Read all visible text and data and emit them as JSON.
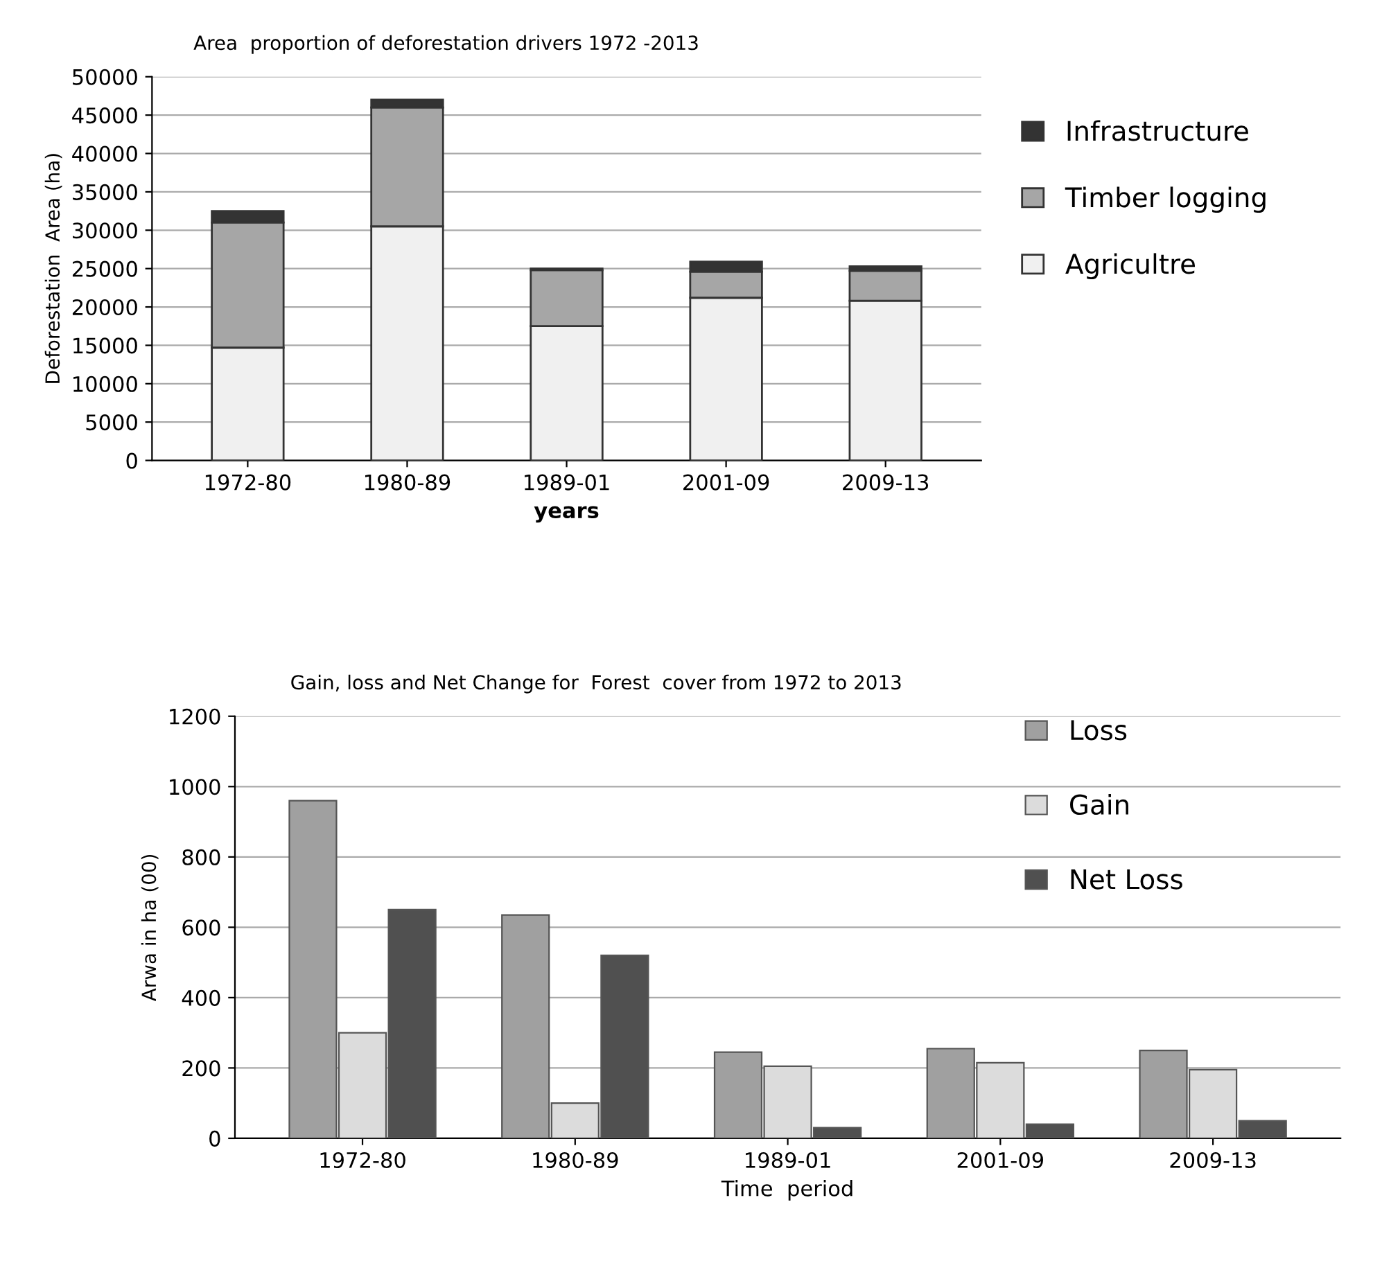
{
  "chart_data": [
    {
      "type": "bar",
      "title": "Area  proportion of deforestation drivers 1972 -2013",
      "xlabel": "years",
      "ylabel": "Deforestation  Area (ha)",
      "categories": [
        "1972-80",
        "1980-89",
        "1989-01",
        "2001-09",
        "2009-13"
      ],
      "stacked": true,
      "series": [
        {
          "name": "Agricultre",
          "color": "#f0f0f0",
          "values": [
            14700,
            30500,
            17500,
            21200,
            20800
          ]
        },
        {
          "name": "Timber logging",
          "color": "#a6a6a6",
          "values": [
            16300,
            15500,
            7300,
            3400,
            3900
          ]
        },
        {
          "name": "Infrastructure",
          "color": "#333333",
          "values": [
            1500,
            1000,
            200,
            1300,
            600
          ]
        }
      ],
      "ylim": [
        0,
        50000
      ],
      "yticks": [
        0,
        5000,
        10000,
        15000,
        20000,
        25000,
        30000,
        35000,
        40000,
        45000,
        50000
      ],
      "grid": "y",
      "legend": "right"
    },
    {
      "type": "bar",
      "title": "Gain, loss and Net Change for  Forest  cover from 1972 to 2013",
      "xlabel": "Time  period",
      "ylabel": "Arwa in ha (00)",
      "categories": [
        "1972-80",
        "1980-89",
        "1989-01",
        "2001-09",
        "2009-13"
      ],
      "series": [
        {
          "name": "Loss",
          "color": "#a0a0a0",
          "values": [
            960,
            635,
            245,
            255,
            250
          ]
        },
        {
          "name": "Gain",
          "color": "#dcdcdc",
          "values": [
            300,
            100,
            205,
            215,
            195
          ]
        },
        {
          "name": "Net Loss",
          "color": "#505050",
          "values": [
            650,
            520,
            30,
            40,
            50
          ]
        }
      ],
      "ylim": [
        0,
        1200
      ],
      "yticks": [
        0,
        200,
        400,
        600,
        800,
        1000,
        1200
      ],
      "grid": "y",
      "legend": "top right"
    }
  ]
}
